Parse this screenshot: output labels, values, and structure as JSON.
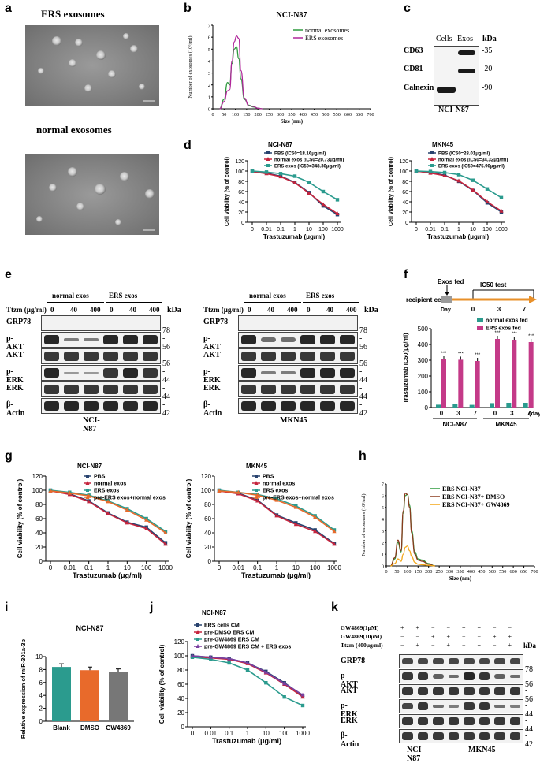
{
  "colors": {
    "green": "#2e9a3e",
    "magenta": "#b0269a",
    "teal": "#2b9b8e",
    "navy": "#27426e",
    "red": "#c5243d",
    "orange": "#e86a2b",
    "purple": "#7a3fa0",
    "pink": "#c43a88",
    "gray": "#777777",
    "brown": "#8a3a1e",
    "yellow": "#f2a516"
  },
  "panels": {
    "a": {
      "letter": "a",
      "top_title": "ERS exosomes",
      "bottom_title": "normal exosomes"
    },
    "b": {
      "letter": "b",
      "title": "NCI-N87"
    },
    "c": {
      "letter": "c",
      "col_cells": "Cells",
      "col_exos": "Exos",
      "kda": "kDa",
      "rows": [
        {
          "name": "CD63",
          "kda": "-35"
        },
        {
          "name": "CD81",
          "kda": "-20"
        },
        {
          "name": "Calnexin",
          "kda": "-90"
        }
      ],
      "cell_line": "NCI-N87"
    },
    "d": {
      "letter": "d"
    },
    "e": {
      "letter": "e",
      "ttzm_label": "Ttzm (μg/ml)",
      "doses": [
        "0",
        "40",
        "400",
        "0",
        "40",
        "400"
      ],
      "group_normal": "normal exos",
      "group_ers": "ERS exos",
      "kda": "kDa",
      "rows": [
        {
          "name": "GRP78",
          "kda": "- 78"
        },
        {
          "name": "p-AKT",
          "kda": "- 56"
        },
        {
          "name": "AKT",
          "kda": "- 56"
        },
        {
          "name": "p-ERK",
          "kda": "- 44"
        },
        {
          "name": "ERK",
          "kda": "- 44"
        },
        {
          "name": "β-Actin",
          "kda": "- 42"
        }
      ],
      "left_cell": "NCI-N87",
      "right_cell": "MKN45"
    },
    "f": {
      "letter": "f",
      "exos_fed": "Exos fed",
      "ic50_test": "IC50  test",
      "recipient": "recipient cells",
      "day_word": "Day",
      "timeline_ticks": [
        "0",
        "3",
        "7"
      ]
    },
    "g": {
      "letter": "g"
    },
    "h": {
      "letter": "h"
    },
    "i": {
      "letter": "i"
    },
    "j": {
      "letter": "j"
    },
    "k": {
      "letter": "k",
      "treatments": [
        {
          "name": "GW4869(1μM)",
          "signs": [
            "+",
            "+",
            "−",
            "−",
            "+",
            "+",
            "−",
            "−"
          ]
        },
        {
          "name": "GW4869(10μM)",
          "signs": [
            "−",
            "−",
            "+",
            "+",
            "−",
            "−",
            "+",
            "+"
          ]
        },
        {
          "name": "Ttzm (400μg/ml)",
          "signs": [
            "−",
            "+",
            "−",
            "+",
            "−",
            "+",
            "−",
            "+"
          ]
        }
      ],
      "kda": "kDa",
      "rows": [
        {
          "name": "GRP78",
          "kda": "- 78"
        },
        {
          "name": "p-AKT",
          "kda": "- 56"
        },
        {
          "name": "AKT",
          "kda": "- 56"
        },
        {
          "name": "p-ERK",
          "kda": "- 44"
        },
        {
          "name": "ERK",
          "kda": "- 44"
        },
        {
          "name": "β-Actin",
          "kda": "- 42"
        }
      ],
      "left_cell": "NCI-N87",
      "right_cell": "MKN45"
    }
  },
  "chart_data": [
    {
      "id": "b",
      "type": "line",
      "title": "NCI-N87",
      "xlabel": "Size (nm)",
      "ylabel": "Number of exosomes (10⁶/ml)",
      "xlim": [
        0,
        700
      ],
      "ylim": [
        0,
        7
      ],
      "xticks": [
        "0",
        "50",
        "100",
        "150",
        "200",
        "250",
        "300",
        "350",
        "400",
        "450",
        "500",
        "550",
        "600",
        "650",
        "700"
      ],
      "yticks": [
        "0",
        "1",
        "2",
        "3",
        "4",
        "5",
        "6",
        "7"
      ],
      "series": [
        {
          "name": "normal exosomes",
          "color": "green",
          "x": [
            30,
            50,
            65,
            75,
            85,
            95,
            105,
            115,
            125,
            140,
            160,
            180,
            200,
            220
          ],
          "y": [
            0,
            0.8,
            2.2,
            2.0,
            3.8,
            5.0,
            5.2,
            4.2,
            2.5,
            0.8,
            0.3,
            0.15,
            0.05,
            0
          ]
        },
        {
          "name": "ERS exosomes",
          "color": "magenta",
          "x": [
            30,
            50,
            65,
            75,
            85,
            95,
            105,
            115,
            125,
            140,
            160,
            180,
            200,
            220
          ],
          "y": [
            0,
            0.6,
            1.5,
            1.6,
            4.0,
            5.6,
            6.1,
            5.9,
            3.2,
            0.9,
            0.25,
            0.2,
            0.05,
            0
          ]
        }
      ]
    },
    {
      "id": "d1",
      "type": "line",
      "title": "NCI-N87",
      "xlabel": "Trastuzumab (μg/ml)",
      "ylabel": "Cell viability (% of control)",
      "ylim": [
        0,
        120
      ],
      "xticks": [
        "0",
        "0.01",
        "0.1",
        "1",
        "10",
        "100",
        "1000"
      ],
      "yticks": [
        "0",
        "20",
        "40",
        "60",
        "80",
        "100",
        "120"
      ],
      "series": [
        {
          "name": "PBS (IC50=18.16μg/ml)",
          "color": "navy",
          "y": [
            100,
            96,
            90,
            78,
            58,
            32,
            15
          ]
        },
        {
          "name": "normal exos (IC50=20.73μg/ml)",
          "color": "red",
          "y": [
            99,
            95,
            89,
            77,
            57,
            35,
            17
          ]
        },
        {
          "name": "ERS exos (IC50=348.30μg/ml)",
          "color": "teal",
          "y": [
            100,
            98,
            95,
            90,
            78,
            60,
            44
          ]
        }
      ]
    },
    {
      "id": "d2",
      "type": "line",
      "title": "MKN45",
      "xlabel": "Trastuzumab (μg/ml)",
      "ylabel": "Cell viability (% of control)",
      "ylim": [
        0,
        120
      ],
      "xticks": [
        "0",
        "0.01",
        "0.1",
        "1",
        "10",
        "100",
        "1000"
      ],
      "yticks": [
        "0",
        "20",
        "40",
        "60",
        "80",
        "100",
        "120"
      ],
      "series": [
        {
          "name": "PBS (IC50=28.01μg/ml)",
          "color": "navy",
          "y": [
            100,
            97,
            92,
            80,
            62,
            38,
            20
          ]
        },
        {
          "name": "normal exos (IC50=34.32μg/ml)",
          "color": "red",
          "y": [
            100,
            96,
            91,
            81,
            63,
            40,
            22
          ]
        },
        {
          "name": "ERS exos (IC50=475.90μg/ml)",
          "color": "teal",
          "y": [
            100,
            99,
            97,
            93,
            82,
            65,
            48
          ]
        }
      ]
    },
    {
      "id": "f",
      "type": "bar",
      "ylabel": "Trastuzumab IC50(μg/ml)",
      "ylim": [
        0,
        500
      ],
      "yticks": [
        "0",
        "100",
        "200",
        "300",
        "400",
        "500"
      ],
      "categories": [
        "0",
        "3",
        "7",
        "0",
        "3",
        "7"
      ],
      "groups": [
        "NCI-N87",
        "MKN45"
      ],
      "x_unit": "(day)",
      "significance": "***",
      "series": [
        {
          "name": "normal exos fed",
          "color": "teal",
          "values": [
            18,
            20,
            17,
            28,
            30,
            30
          ]
        },
        {
          "name": "ERS exos fed",
          "color": "pink",
          "values": [
            305,
            303,
            295,
            435,
            430,
            415
          ]
        }
      ]
    },
    {
      "id": "g1",
      "type": "line",
      "title": "NCI-N87",
      "xlabel": "Trastuzumab (μg/ml)",
      "ylabel": "Cell viability (% of control)",
      "ylim": [
        0,
        120
      ],
      "xticks": [
        "0",
        "0.01",
        "0.1",
        "1",
        "10",
        "100",
        "1000"
      ],
      "yticks": [
        "0",
        "20",
        "40",
        "60",
        "80",
        "100",
        "120"
      ],
      "series": [
        {
          "name": "PBS",
          "color": "navy",
          "y": [
            100,
            95,
            85,
            68,
            55,
            48,
            26
          ]
        },
        {
          "name": "normal exos",
          "color": "red",
          "y": [
            99,
            94,
            84,
            67,
            54,
            46,
            24
          ]
        },
        {
          "name": "ERS exos",
          "color": "teal",
          "y": [
            100,
            97,
            93,
            85,
            74,
            60,
            42
          ]
        },
        {
          "name": "pre-ERS exos+normal exos",
          "color": "orange",
          "y": [
            99,
            96,
            92,
            84,
            72,
            58,
            40
          ]
        }
      ]
    },
    {
      "id": "g2",
      "type": "line",
      "title": "MKN45",
      "xlabel": "Trastuzumab (μg/ml)",
      "ylabel": "Cell viability (% of control)",
      "ylim": [
        0,
        120
      ],
      "xticks": [
        "0",
        "0.01",
        "0.1",
        "1",
        "10",
        "100",
        "1000"
      ],
      "yticks": [
        "0",
        "20",
        "40",
        "60",
        "80",
        "100",
        "120"
      ],
      "series": [
        {
          "name": "PBS",
          "color": "navy",
          "y": [
            100,
            96,
            86,
            65,
            54,
            44,
            25
          ]
        },
        {
          "name": "normal exos",
          "color": "red",
          "y": [
            99,
            95,
            85,
            64,
            52,
            42,
            24
          ]
        },
        {
          "name": "ERS exos",
          "color": "teal",
          "y": [
            100,
            97,
            94,
            88,
            78,
            64,
            44
          ]
        },
        {
          "name": "pre-ERS exos+normal exos",
          "color": "orange",
          "y": [
            99,
            97,
            93,
            86,
            76,
            62,
            42
          ]
        }
      ]
    },
    {
      "id": "h",
      "type": "line",
      "xlabel": "Size (nm)",
      "ylabel": "Number of exosomes (10⁶/ml)",
      "xlim": [
        0,
        700
      ],
      "ylim": [
        0,
        7
      ],
      "xticks": [
        "0",
        "50",
        "100",
        "150",
        "200",
        "250",
        "300",
        "350",
        "400",
        "450",
        "500",
        "550",
        "600",
        "650",
        "700"
      ],
      "yticks": [
        "0",
        "1",
        "2",
        "3",
        "4",
        "5",
        "6",
        "7"
      ],
      "series": [
        {
          "name": "ERS NCI-N87",
          "color": "green",
          "x": [
            20,
            40,
            55,
            70,
            80,
            90,
            100,
            110,
            120,
            135,
            150,
            170,
            200,
            230
          ],
          "y": [
            0,
            0.6,
            2.0,
            1.2,
            4.5,
            6.0,
            6.1,
            5.2,
            3.0,
            1.2,
            0.6,
            0.5,
            0.2,
            0
          ]
        },
        {
          "name": "ERS NCI-N87+ DMSO",
          "color": "brown",
          "x": [
            20,
            40,
            55,
            70,
            80,
            90,
            100,
            110,
            120,
            135,
            150,
            170,
            200,
            230
          ],
          "y": [
            0,
            0.7,
            2.2,
            1.3,
            4.7,
            6.2,
            6.1,
            5.0,
            2.8,
            1.0,
            0.5,
            0.4,
            0.15,
            0
          ]
        },
        {
          "name": "ERS NCI-N87+ GW4869",
          "color": "yellow",
          "x": [
            20,
            40,
            55,
            70,
            80,
            90,
            100,
            110,
            120,
            135,
            150,
            170,
            200,
            230
          ],
          "y": [
            0,
            0.2,
            0.6,
            0.4,
            1.0,
            1.6,
            1.7,
            1.3,
            0.8,
            0.3,
            0.15,
            0.1,
            0.05,
            0
          ]
        }
      ]
    },
    {
      "id": "i",
      "type": "bar",
      "title": "NCI-N87",
      "ylabel": "Relative expression of miR-301a-3p",
      "ylim": [
        0,
        10
      ],
      "yticks": [
        "0",
        "2",
        "4",
        "6",
        "8",
        "10"
      ],
      "categories": [
        "Blank",
        "DMSO",
        "GW4869"
      ],
      "values": [
        8.4,
        7.9,
        7.6
      ],
      "bar_colors": [
        "teal",
        "orange",
        "gray"
      ]
    },
    {
      "id": "j",
      "type": "line",
      "title": "NCI-N87",
      "xlabel": "Trastuzumab (μg/ml)",
      "ylabel": "Cell viability (% of control)",
      "ylim": [
        0,
        120
      ],
      "xticks": [
        "0",
        "0.01",
        "0.1",
        "1",
        "10",
        "100",
        "1000"
      ],
      "yticks": [
        "0",
        "20",
        "40",
        "60",
        "80",
        "100",
        "120"
      ],
      "series": [
        {
          "name": "ERS cells CM",
          "color": "navy",
          "y": [
            100,
            98,
            96,
            90,
            78,
            62,
            44
          ]
        },
        {
          "name": "pre-DMSO ERS CM",
          "color": "red",
          "y": [
            99,
            97,
            95,
            89,
            76,
            60,
            42
          ]
        },
        {
          "name": "pre-GW4869 ERS CM",
          "color": "teal",
          "y": [
            98,
            95,
            90,
            80,
            62,
            42,
            30
          ]
        },
        {
          "name": "pre-GW4869 ERS CM + ERS exos",
          "color": "purple",
          "y": [
            100,
            98,
            96,
            90,
            77,
            61,
            45
          ]
        }
      ]
    }
  ]
}
